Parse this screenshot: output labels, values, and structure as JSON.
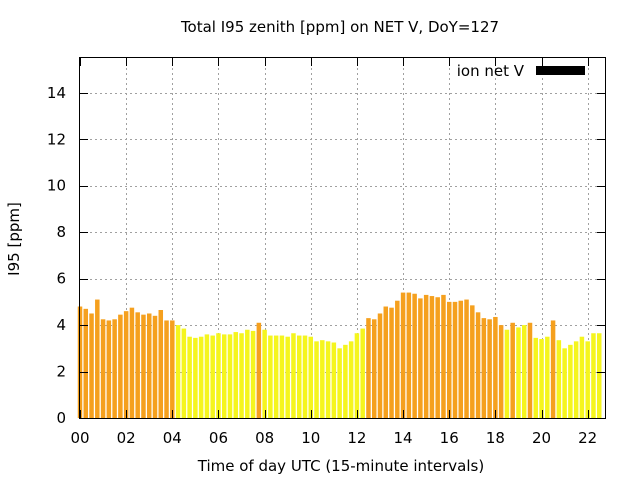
{
  "chart_data": {
    "type": "bar",
    "title": "Total I95 zenith [ppm] on NET V, DoY=127",
    "xlabel": "Time of day UTC (15-minute intervals)",
    "ylabel": "I95 [ppm]",
    "xlim": [
      0,
      22.75
    ],
    "ylim": [
      0,
      15.5
    ],
    "x_ticks": [
      "00",
      "02",
      "04",
      "06",
      "08",
      "10",
      "12",
      "14",
      "16",
      "18",
      "20",
      "22"
    ],
    "x_tick_values": [
      0,
      2,
      4,
      6,
      8,
      10,
      12,
      14,
      16,
      18,
      20,
      22
    ],
    "y_ticks": [
      "0",
      "2",
      "4",
      "6",
      "8",
      "10",
      "12",
      "14"
    ],
    "y_tick_values": [
      0,
      2,
      4,
      6,
      8,
      10,
      12,
      14
    ],
    "grid": true,
    "legend": {
      "label": "ion net V",
      "color": "#000000",
      "placement": "top-right"
    },
    "colors": {
      "orange": "#f5a01e",
      "yellow": "#f5f51e"
    },
    "bar_interval_hours": 0.25,
    "values": [
      4.8,
      4.7,
      4.5,
      5.1,
      4.25,
      4.2,
      4.25,
      4.45,
      4.6,
      4.75,
      4.55,
      4.45,
      4.5,
      4.4,
      4.65,
      4.2,
      4.2,
      4.0,
      3.85,
      3.5,
      3.45,
      3.5,
      3.6,
      3.55,
      3.65,
      3.6,
      3.6,
      3.7,
      3.65,
      3.8,
      3.75,
      4.1,
      3.8,
      3.55,
      3.55,
      3.55,
      3.5,
      3.65,
      3.55,
      3.55,
      3.5,
      3.3,
      3.35,
      3.3,
      3.25,
      3.0,
      3.15,
      3.3,
      3.65,
      3.85,
      4.3,
      4.25,
      4.5,
      4.8,
      4.75,
      5.05,
      5.4,
      5.4,
      5.35,
      5.15,
      5.3,
      5.25,
      5.2,
      5.3,
      5.0,
      5.0,
      5.05,
      5.1,
      4.85,
      4.55,
      4.3,
      4.25,
      4.35,
      4.0,
      3.8,
      4.1,
      3.9,
      4.0,
      4.1,
      3.45,
      3.4,
      3.5,
      4.2,
      3.35,
      3.0,
      3.15,
      3.3,
      3.5,
      3.3,
      3.65,
      3.65
    ],
    "bar_colors": [
      "orange",
      "orange",
      "orange",
      "orange",
      "orange",
      "orange",
      "orange",
      "orange",
      "orange",
      "orange",
      "orange",
      "orange",
      "orange",
      "orange",
      "orange",
      "orange",
      "orange",
      "yellow",
      "yellow",
      "yellow",
      "yellow",
      "yellow",
      "yellow",
      "yellow",
      "yellow",
      "yellow",
      "yellow",
      "yellow",
      "yellow",
      "yellow",
      "yellow",
      "orange",
      "yellow",
      "yellow",
      "yellow",
      "yellow",
      "yellow",
      "yellow",
      "yellow",
      "yellow",
      "yellow",
      "yellow",
      "yellow",
      "yellow",
      "yellow",
      "yellow",
      "yellow",
      "yellow",
      "yellow",
      "yellow",
      "orange",
      "orange",
      "orange",
      "orange",
      "orange",
      "orange",
      "orange",
      "orange",
      "orange",
      "orange",
      "orange",
      "orange",
      "orange",
      "orange",
      "orange",
      "orange",
      "orange",
      "orange",
      "orange",
      "orange",
      "orange",
      "orange",
      "orange",
      "orange",
      "yellow",
      "orange",
      "yellow",
      "yellow",
      "orange",
      "yellow",
      "yellow",
      "yellow",
      "orange",
      "yellow",
      "yellow",
      "yellow",
      "yellow",
      "yellow",
      "yellow",
      "yellow",
      "yellow"
    ]
  }
}
